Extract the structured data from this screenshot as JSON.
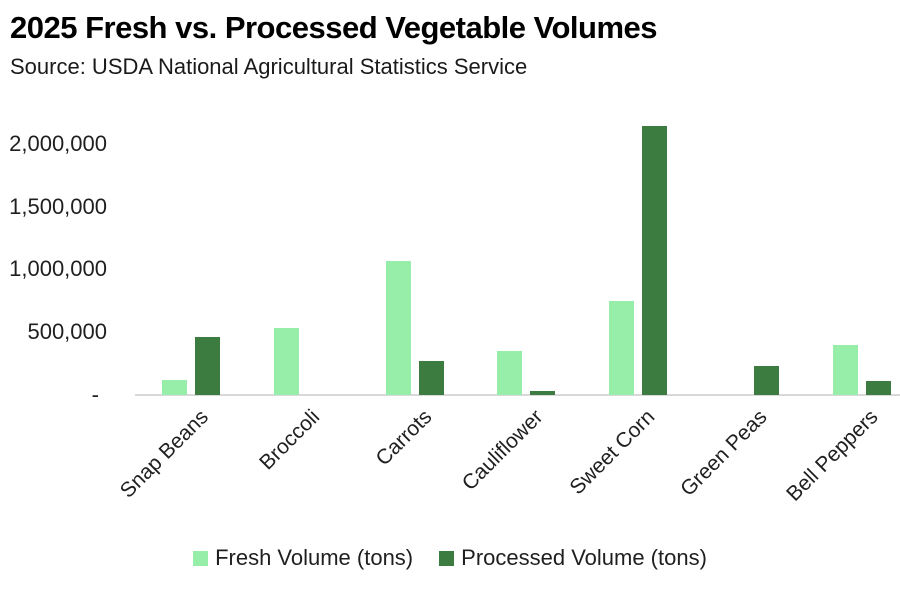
{
  "chart_data": {
    "type": "bar",
    "title": "2025 Fresh vs. Processed Vegetable Volumes",
    "source": "Source: USDA National Agricultural Statistics Service",
    "categories": [
      "Snap Beans",
      "Broccoli",
      "Carrots",
      "Cauliflower",
      "Sweet Corn",
      "Green Peas",
      "Bell Peppers"
    ],
    "series": [
      {
        "name": "Fresh Volume (tons)",
        "color": "#97EEA9",
        "values": [
          120000,
          530000,
          1070000,
          350000,
          750000,
          null,
          400000
        ]
      },
      {
        "name": "Processed Volume (tons)",
        "color": "#3D7C41",
        "values": [
          460000,
          null,
          270000,
          35000,
          2140000,
          230000,
          115000
        ]
      }
    ],
    "y_axis": {
      "min": 0,
      "max": 2000000,
      "ticks": [
        2000000,
        1500000,
        1000000,
        500000,
        0
      ],
      "tick_labels": [
        "2,000,000",
        "1,500,000",
        "1,000,000",
        "500,000",
        "-"
      ]
    },
    "xlabel": "",
    "ylabel": "",
    "grid": false,
    "legend_position": "bottom",
    "axis_line_color": "#D9D9D9",
    "text_color": "#1F1F1F"
  }
}
